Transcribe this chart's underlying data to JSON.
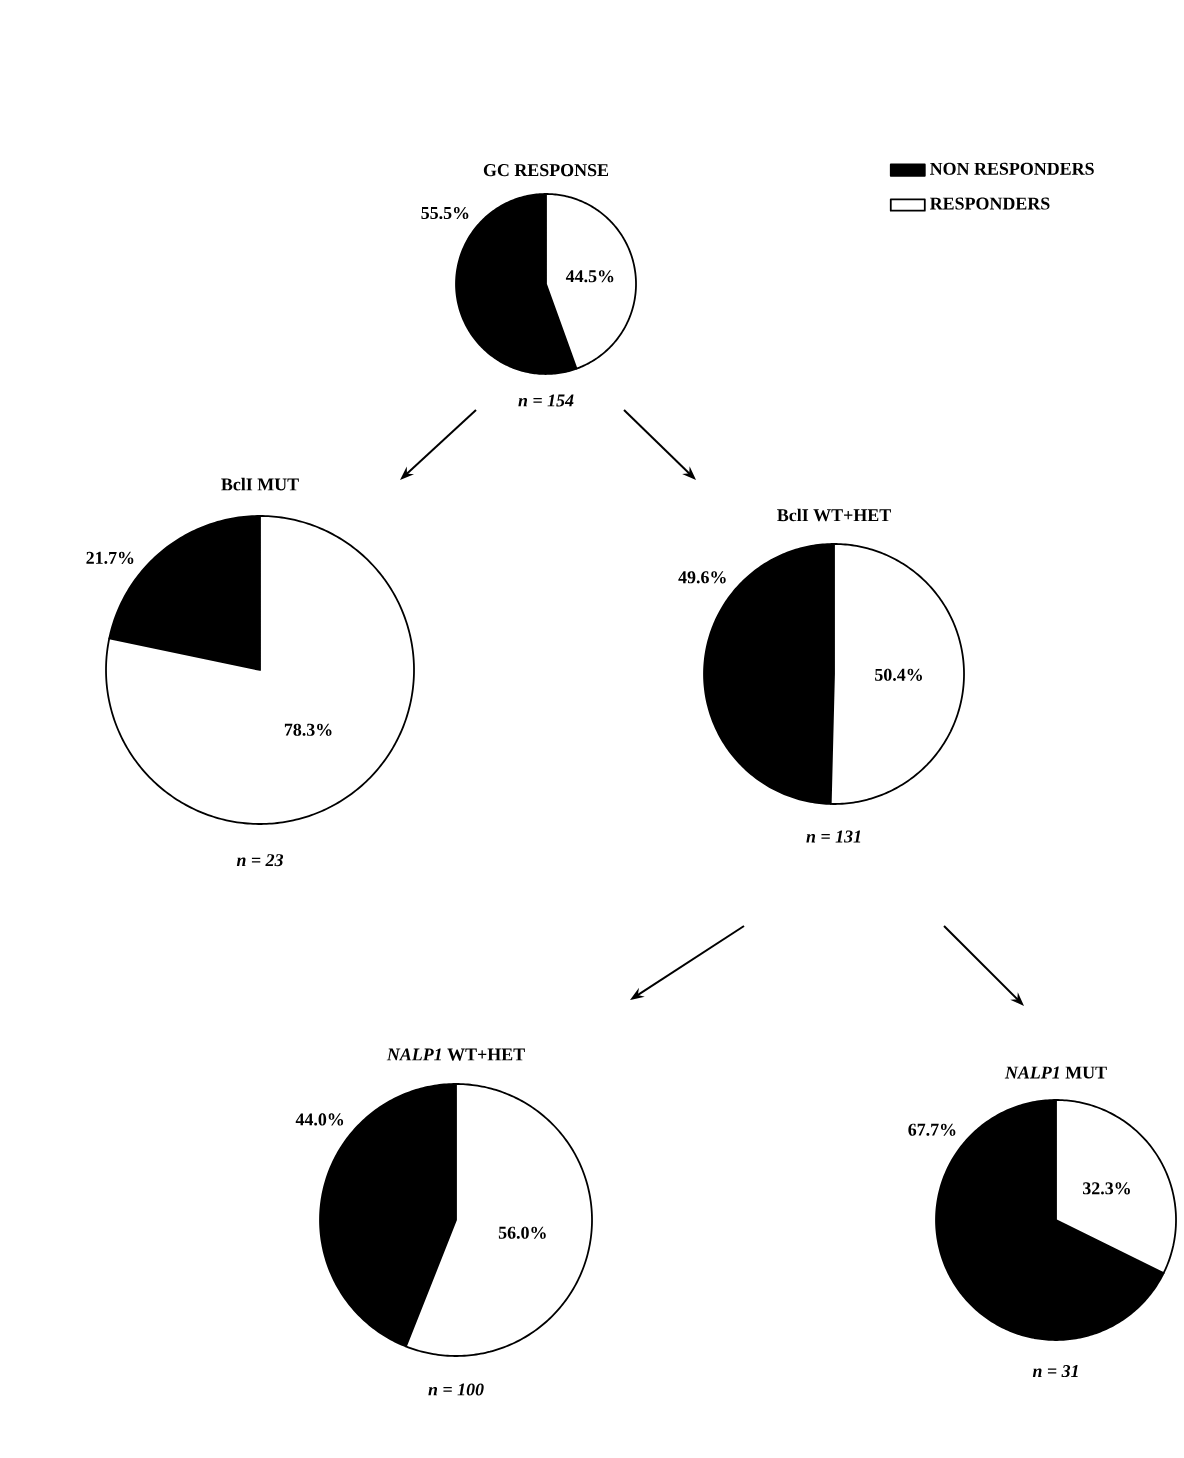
{
  "chart_data": [
    {
      "type": "pie",
      "title": "GC RESPONSE",
      "categories": [
        "NON RESPONDERS",
        "RESPONDERS"
      ],
      "values": [
        55.5,
        44.5
      ],
      "colors": [
        "#000000",
        "#ffffff"
      ],
      "value_labels": [
        "55.5%",
        "44.5%"
      ],
      "legend": "right",
      "annotations": [
        "n = 154"
      ]
    },
    {
      "type": "pie",
      "title": "BclI MUT",
      "categories": [
        null,
        null
      ],
      "values": [
        21.7,
        78.3
      ],
      "colors": [
        "#000000",
        "#ffffff"
      ],
      "value_labels": [
        "21.7%",
        "78.3%"
      ],
      "annotations": [
        "n = 23"
      ]
    },
    {
      "type": "pie",
      "title": "BclI  WT+HET",
      "categories": [
        null,
        null
      ],
      "values": [
        49.6,
        50.4
      ],
      "colors": [
        "#000000",
        "#ffffff"
      ],
      "value_labels": [
        "49.6%",
        "50.4%"
      ],
      "annotations": [
        "n = 131"
      ]
    },
    {
      "type": "pie",
      "title": "*NALP1* WT+HET",
      "categories": [
        null,
        null
      ],
      "values": [
        44.0,
        56.0
      ],
      "colors": [
        "#000000",
        "#ffffff"
      ],
      "value_labels": [
        "44.0%",
        "56.0%"
      ],
      "annotations": [
        "n = 100"
      ]
    },
    {
      "type": "pie",
      "title": "*NALP1* MUT",
      "categories": [
        null,
        null
      ],
      "values": [
        67.7,
        32.3
      ],
      "colors": [
        "#000000",
        "#ffffff"
      ],
      "value_labels": [
        "67.7%",
        "32.3%"
      ],
      "annotations": [
        "n = 31"
      ]
    }
  ]
}
